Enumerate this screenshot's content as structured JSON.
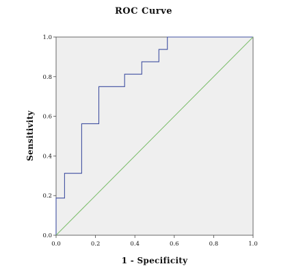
{
  "chart_data": {
    "type": "line",
    "title": "ROC Curve",
    "xlabel": "1 - Specificity",
    "ylabel": "Sensitivity",
    "xlim": [
      0.0,
      1.0
    ],
    "ylim": [
      0.0,
      1.0
    ],
    "x_ticks": [
      "0.0",
      "0.2",
      "0.4",
      "0.6",
      "0.8",
      "1.0"
    ],
    "y_ticks": [
      "0.0",
      "0.2",
      "0.4",
      "0.6",
      "0.8",
      "1.0"
    ],
    "grid": false,
    "legend": "none",
    "plot_background": "#efefef",
    "series": [
      {
        "color": "#3f4fa0",
        "step": true,
        "x": [
          0.0,
          0.0,
          0.043,
          0.043,
          0.13,
          0.13,
          0.217,
          0.217,
          0.348,
          0.348,
          0.435,
          0.435,
          0.522,
          0.522,
          0.565,
          0.565,
          1.0
        ],
        "y": [
          0.0,
          0.1875,
          0.1875,
          0.3125,
          0.3125,
          0.5625,
          0.5625,
          0.75,
          0.75,
          0.8125,
          0.8125,
          0.875,
          0.875,
          0.9375,
          0.9375,
          1.0,
          1.0
        ]
      },
      {
        "color": "#7fbf6f",
        "step": false,
        "x": [
          0.0,
          1.0
        ],
        "y": [
          0.0,
          1.0
        ]
      }
    ]
  }
}
